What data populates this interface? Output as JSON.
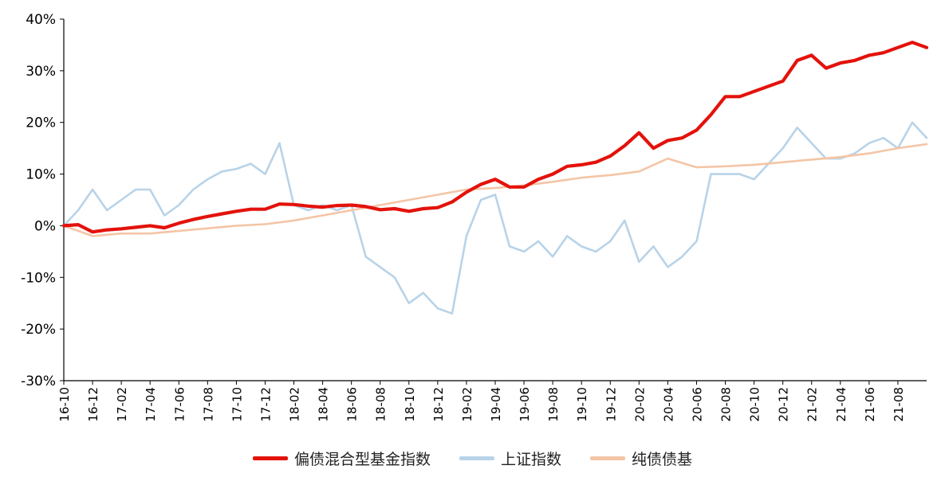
{
  "chart_data": {
    "type": "line",
    "title": "",
    "xlabel": "",
    "ylabel": "",
    "ylim": [
      -30,
      40
    ],
    "yticks": [
      -30,
      -20,
      -10,
      0,
      10,
      20,
      30,
      40
    ],
    "ytick_labels": [
      "-30%",
      "-20%",
      "-10%",
      "0%",
      "10%",
      "20%",
      "30%",
      "40%"
    ],
    "x_range": [
      "2016-10",
      "2021-10"
    ],
    "xtick_labels": [
      "16-10",
      "16-12",
      "17-02",
      "17-04",
      "17-06",
      "17-08",
      "17-10",
      "17-12",
      "18-02",
      "18-04",
      "18-06",
      "18-08",
      "18-10",
      "18-12",
      "19-02",
      "19-04",
      "19-06",
      "19-08",
      "19-10",
      "19-12",
      "20-02",
      "20-04",
      "20-06",
      "20-08",
      "20-10",
      "20-12",
      "21-02",
      "21-04",
      "21-06",
      "21-08"
    ],
    "grid": false,
    "legend_position": "bottom",
    "series": [
      {
        "name": "偏债混合型基金指数",
        "color": "#e3120b",
        "months": [
          "2016-10",
          "2016-11",
          "2016-12",
          "2017-01",
          "2017-02",
          "2017-03",
          "2017-04",
          "2017-05",
          "2017-06",
          "2017-07",
          "2017-08",
          "2017-09",
          "2017-10",
          "2017-11",
          "2017-12",
          "2018-01",
          "2018-02",
          "2018-03",
          "2018-04",
          "2018-05",
          "2018-06",
          "2018-07",
          "2018-08",
          "2018-09",
          "2018-10",
          "2018-11",
          "2018-12",
          "2019-01",
          "2019-02",
          "2019-03",
          "2019-04",
          "2019-05",
          "2019-06",
          "2019-07",
          "2019-08",
          "2019-09",
          "2019-10",
          "2019-11",
          "2019-12",
          "2020-01",
          "2020-02",
          "2020-03",
          "2020-04",
          "2020-05",
          "2020-06",
          "2020-07",
          "2020-08",
          "2020-09",
          "2020-10",
          "2020-11",
          "2020-12",
          "2021-01",
          "2021-02",
          "2021-03",
          "2021-04",
          "2021-05",
          "2021-06",
          "2021-07",
          "2021-08",
          "2021-09",
          "2021-10"
        ],
        "values": [
          0.0,
          0.2,
          -1.2,
          -0.8,
          -0.6,
          -0.3,
          0.0,
          -0.4,
          0.5,
          1.2,
          1.8,
          2.3,
          2.8,
          3.2,
          3.2,
          4.2,
          4.1,
          3.8,
          3.6,
          3.9,
          4.0,
          3.7,
          3.1,
          3.3,
          2.8,
          3.3,
          3.5,
          4.6,
          6.5,
          8.0,
          9.0,
          7.5,
          7.5,
          9.0,
          10.0,
          11.5,
          11.8,
          12.3,
          13.5,
          15.5,
          18.0,
          15.0,
          16.5,
          17.0,
          18.5,
          21.5,
          25.0,
          25.0,
          26.0,
          27.0,
          28.0,
          32.0,
          33.0,
          30.5,
          31.5,
          32.0,
          33.0,
          33.5,
          34.5,
          35.5,
          34.5
        ]
      },
      {
        "name": "上证指数",
        "color": "#b8d3e8",
        "months": [
          "2016-10",
          "2016-11",
          "2016-12",
          "2017-01",
          "2017-02",
          "2017-03",
          "2017-04",
          "2017-05",
          "2017-06",
          "2017-07",
          "2017-08",
          "2017-09",
          "2017-10",
          "2017-11",
          "2017-12",
          "2018-01",
          "2018-02",
          "2018-03",
          "2018-04",
          "2018-05",
          "2018-06",
          "2018-07",
          "2018-08",
          "2018-09",
          "2018-10",
          "2018-11",
          "2018-12",
          "2019-01",
          "2019-02",
          "2019-03",
          "2019-04",
          "2019-05",
          "2019-06",
          "2019-07",
          "2019-08",
          "2019-09",
          "2019-10",
          "2019-11",
          "2019-12",
          "2020-01",
          "2020-02",
          "2020-03",
          "2020-04",
          "2020-05",
          "2020-06",
          "2020-07",
          "2020-08",
          "2020-09",
          "2020-10",
          "2020-11",
          "2020-12",
          "2021-01",
          "2021-02",
          "2021-03",
          "2021-04",
          "2021-05",
          "2021-06",
          "2021-07",
          "2021-08",
          "2021-09",
          "2021-10"
        ],
        "values": [
          0.0,
          3.0,
          7.0,
          3.0,
          5.0,
          7.0,
          7.0,
          2.0,
          4.0,
          7.0,
          9.0,
          10.5,
          11.0,
          12.0,
          10.0,
          16.0,
          4.0,
          3.0,
          4.0,
          3.0,
          4.0,
          -6.0,
          -8.0,
          -10.0,
          -15.0,
          -13.0,
          -16.0,
          -17.0,
          -2.0,
          5.0,
          6.0,
          -4.0,
          -5.0,
          -3.0,
          -6.0,
          -2.0,
          -4.0,
          -5.0,
          -3.0,
          1.0,
          -7.0,
          -4.0,
          -8.0,
          -6.0,
          -3.0,
          10.0,
          10.0,
          10.0,
          9.0,
          12.0,
          15.0,
          19.0,
          16.0,
          13.0,
          13.0,
          14.0,
          16.0,
          17.0,
          15.0,
          20.0,
          17.0
        ]
      },
      {
        "name": "纯债债基",
        "color": "#f4c5a5",
        "months": [
          "2016-10",
          "2016-12",
          "2017-02",
          "2017-04",
          "2017-06",
          "2017-08",
          "2017-10",
          "2017-12",
          "2018-02",
          "2018-04",
          "2018-06",
          "2018-08",
          "2018-10",
          "2018-12",
          "2019-02",
          "2019-04",
          "2019-06",
          "2019-08",
          "2019-10",
          "2019-12",
          "2020-02",
          "2020-04",
          "2020-06",
          "2020-08",
          "2020-10",
          "2020-12",
          "2021-02",
          "2021-04",
          "2021-06",
          "2021-08",
          "2021-10"
        ],
        "values": [
          0.0,
          -2.0,
          -1.5,
          -1.5,
          -1.0,
          -0.5,
          0.0,
          0.3,
          1.0,
          2.0,
          3.0,
          4.0,
          5.0,
          6.0,
          7.0,
          7.3,
          7.8,
          8.5,
          9.3,
          9.8,
          10.5,
          13.0,
          11.3,
          11.5,
          11.8,
          12.3,
          12.8,
          13.3,
          14.0,
          15.0,
          15.8
        ]
      }
    ]
  }
}
